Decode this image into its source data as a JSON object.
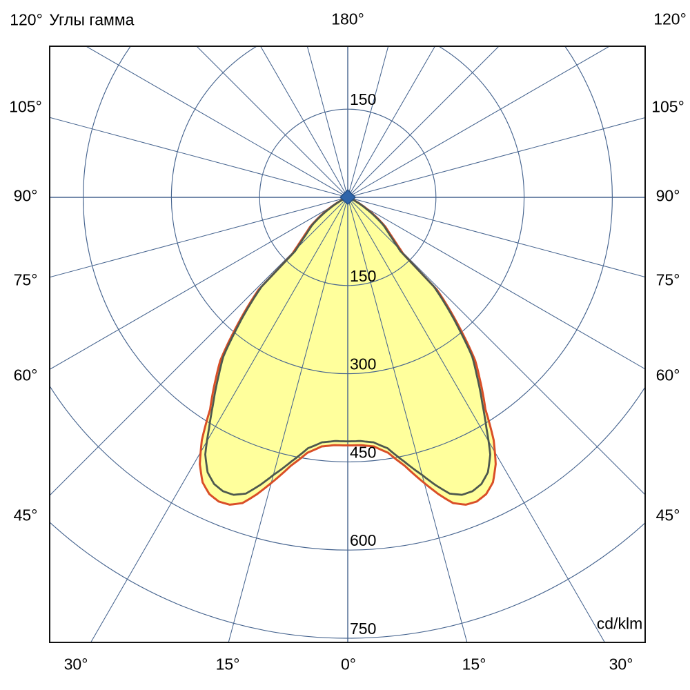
{
  "header": {
    "top_left_angle": "120°",
    "title": "Углы гамма",
    "top_center_angle": "180°",
    "top_right_angle": "120°"
  },
  "side_labels": {
    "left": [
      "105°",
      "90°",
      "75°",
      "60°",
      "45°"
    ],
    "right": [
      "105°",
      "90°",
      "75°",
      "60°",
      "45°"
    ],
    "bottom": [
      "30°",
      "15°",
      "0°",
      "15°",
      "30°"
    ]
  },
  "unit_label": "cd/klm",
  "colors": {
    "grid": "#46648f",
    "border": "#111111",
    "outer_curve": "#d94e27",
    "inner_curve": "#4d584e",
    "fill": "#ffff9c",
    "center_marker_fill": "#2f65aa",
    "center_marker_stroke": "#234e84",
    "text": "#000000"
  },
  "chart_data": {
    "type": "polar",
    "title": "Углы гамма",
    "units": "cd/klm",
    "radial_ticks": [
      150,
      300,
      450,
      600,
      750
    ],
    "radial_ticks_labeled_above_center": [
      "150"
    ],
    "angular_tick_step_deg": 15,
    "angular_labels_deg": [
      0,
      15,
      30,
      45,
      60,
      75,
      90,
      105,
      120,
      180
    ],
    "gamma_zero_direction": "down",
    "symmetric_about_vertical": true,
    "fill_color": "#ffff9c",
    "series": [
      {
        "name": "outer",
        "color": "#d94e27",
        "points_gamma_deg_value": [
          [
            0,
            422
          ],
          [
            3,
            422
          ],
          [
            6,
            426
          ],
          [
            9,
            440
          ],
          [
            12,
            467
          ],
          [
            15,
            503
          ],
          [
            17,
            528
          ],
          [
            19,
            550
          ],
          [
            21,
            560
          ],
          [
            23,
            562
          ],
          [
            25,
            557
          ],
          [
            27,
            544
          ],
          [
            29,
            519
          ],
          [
            31,
            482
          ],
          [
            33,
            430
          ],
          [
            35,
            398
          ],
          [
            36,
            382
          ],
          [
            38,
            352
          ],
          [
            40,
            306
          ],
          [
            42,
            262
          ],
          [
            44,
            218
          ],
          [
            44.4,
            135
          ],
          [
            46,
            118
          ],
          [
            48,
            102
          ],
          [
            50,
            90
          ],
          [
            52,
            81
          ],
          [
            55,
            61
          ],
          [
            58,
            42
          ],
          [
            61,
            27
          ],
          [
            64,
            15
          ],
          [
            68,
            7
          ],
          [
            72,
            3
          ],
          [
            78,
            1.2
          ],
          [
            84,
            0.5
          ],
          [
            90,
            0
          ]
        ]
      },
      {
        "name": "inner",
        "color": "#4d584e",
        "points_gamma_deg_value": [
          [
            0,
            415
          ],
          [
            3,
            415
          ],
          [
            6,
            419
          ],
          [
            9,
            432
          ],
          [
            12,
            459
          ],
          [
            15,
            489
          ],
          [
            17,
            512
          ],
          [
            19,
            533
          ],
          [
            21,
            542
          ],
          [
            23,
            543
          ],
          [
            25,
            538
          ],
          [
            27,
            525
          ],
          [
            29,
            500
          ],
          [
            31,
            458
          ],
          [
            33,
            421
          ],
          [
            35,
            389
          ],
          [
            36,
            373
          ],
          [
            38,
            344
          ],
          [
            40,
            298
          ],
          [
            42,
            255
          ],
          [
            44,
            211
          ],
          [
            44.4,
            128
          ],
          [
            46,
            112
          ],
          [
            48,
            97
          ],
          [
            50,
            86
          ],
          [
            52,
            77
          ],
          [
            55,
            57
          ],
          [
            58,
            38
          ],
          [
            61,
            24
          ],
          [
            64,
            13
          ],
          [
            68,
            6
          ],
          [
            72,
            2.5
          ],
          [
            78,
            1
          ],
          [
            84,
            0.4
          ],
          [
            90,
            0
          ]
        ]
      }
    ]
  }
}
